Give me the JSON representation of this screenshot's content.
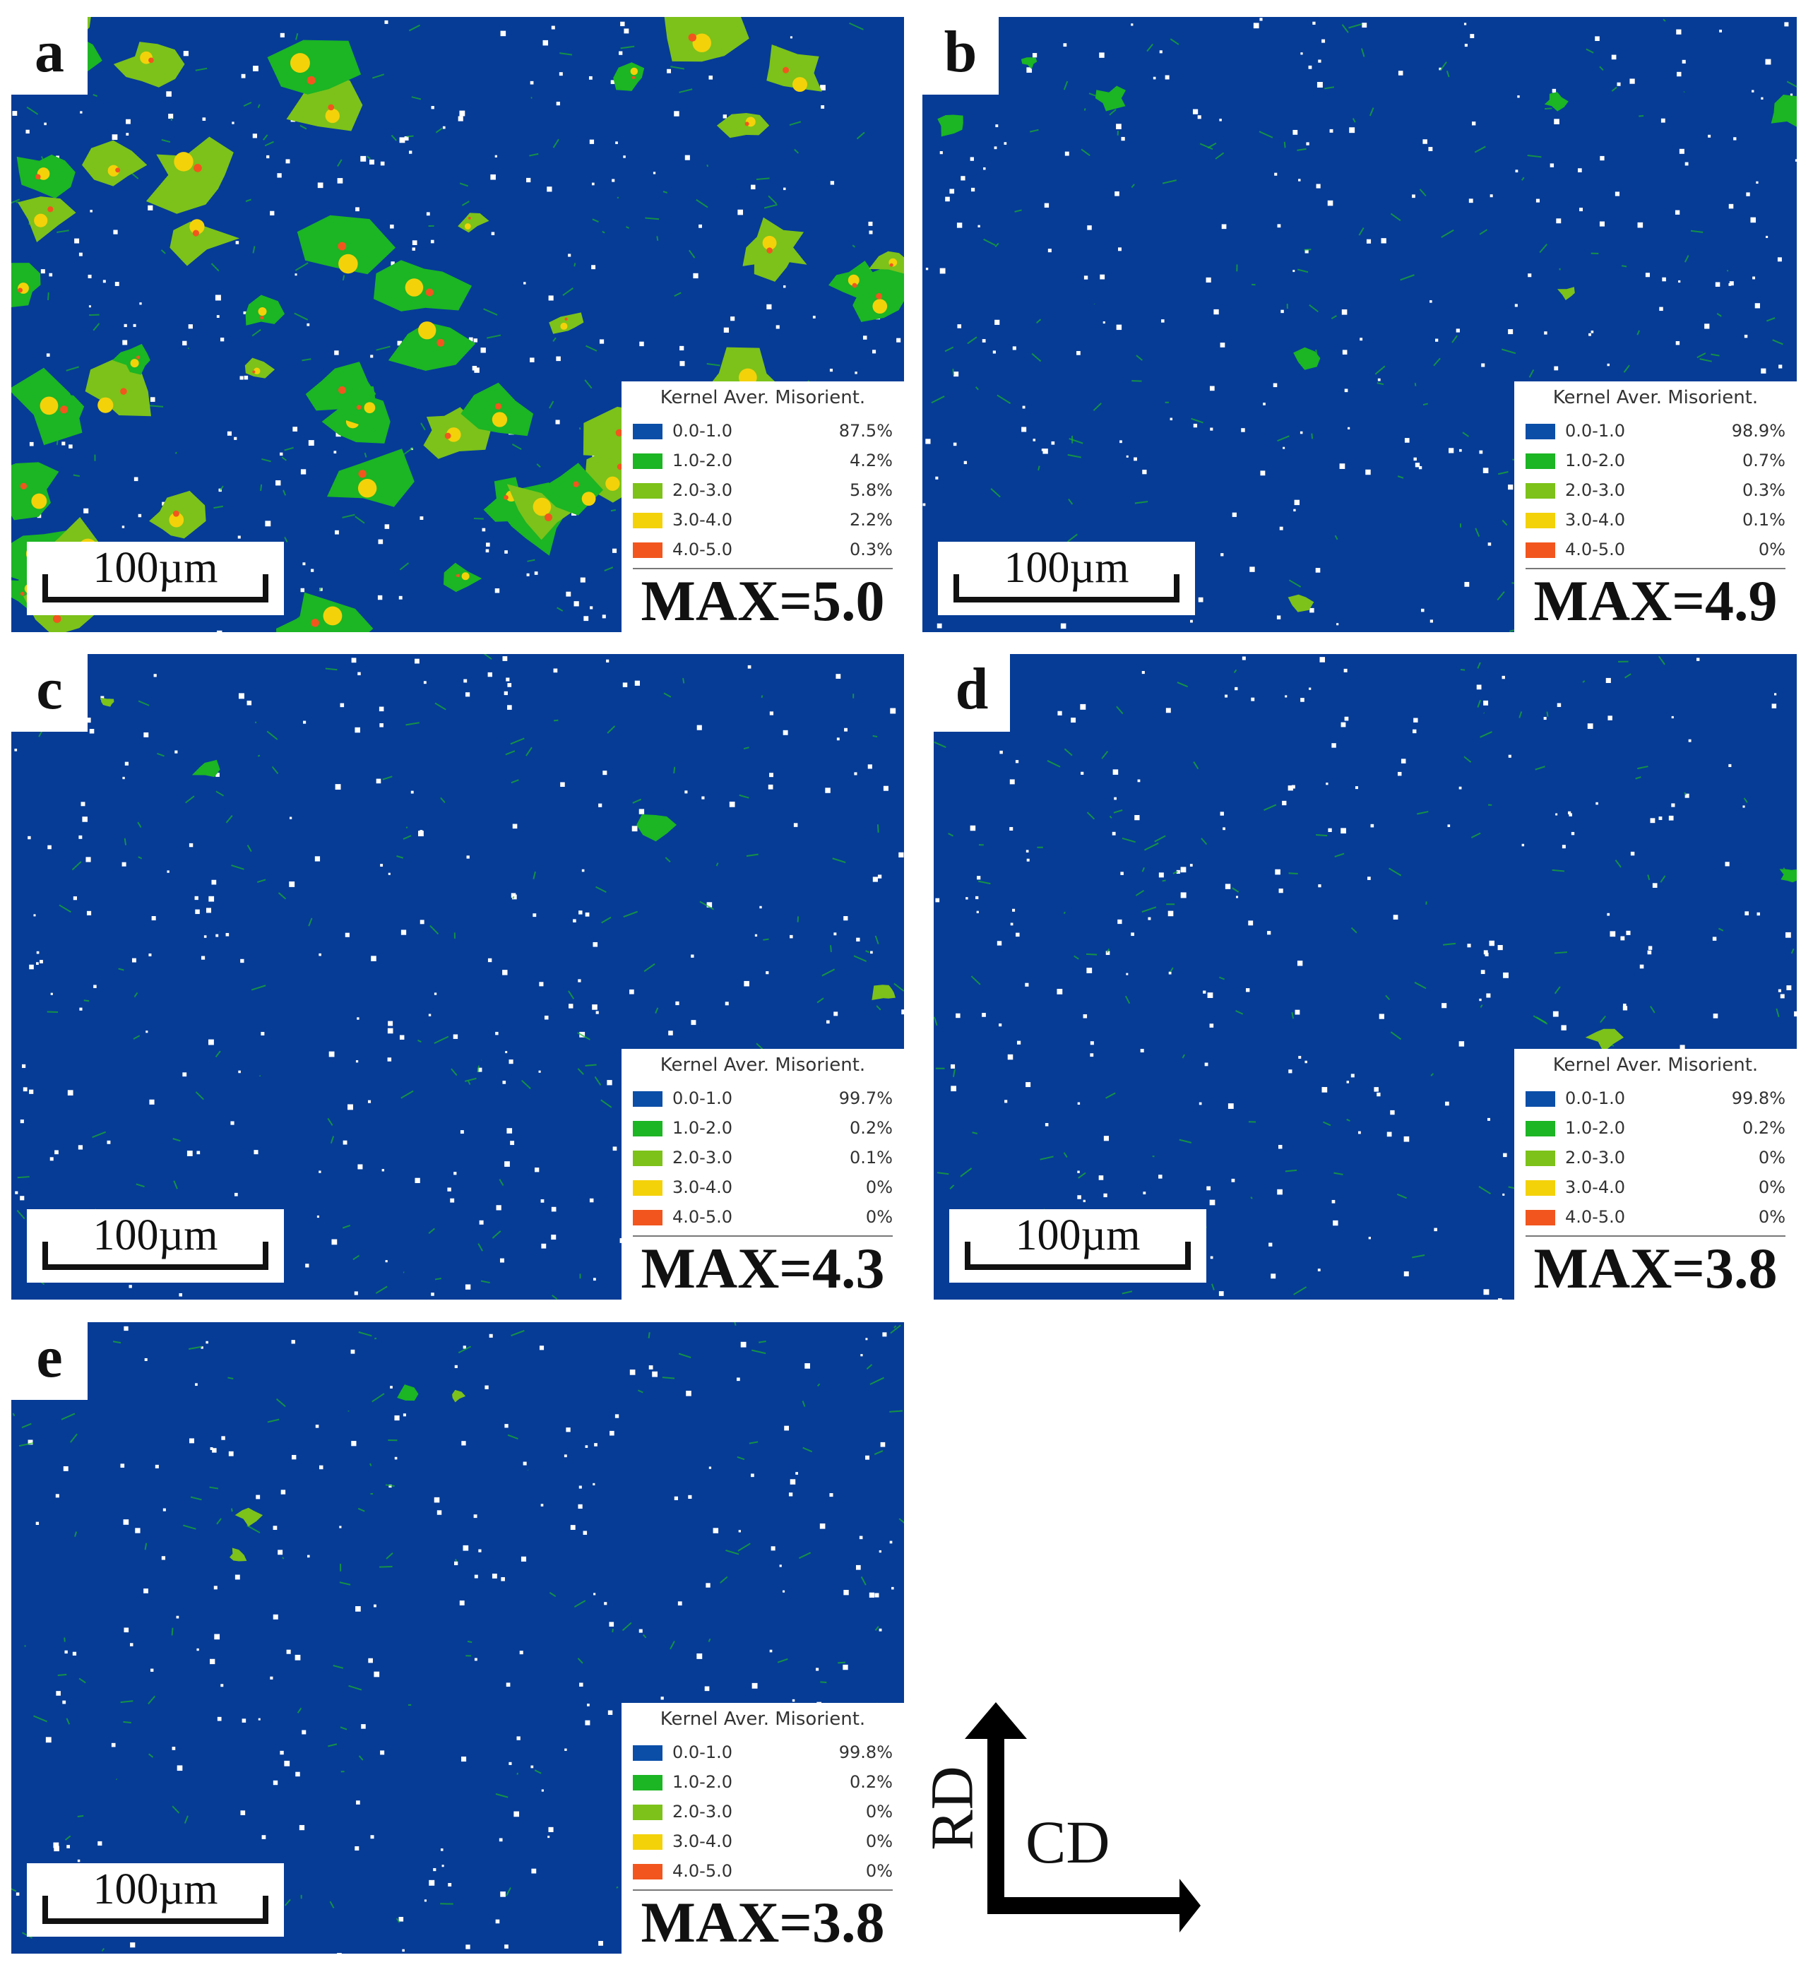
{
  "colors": {
    "matrix": "#063C96",
    "bin_0_1": "#0A4EA8",
    "bin_1_2": "#1CB524",
    "bin_2_3": "#7CC21A",
    "bin_3_4": "#F3D20A",
    "bin_4_5": "#F2561E"
  },
  "legend_title": "Kernel Aver. Misorient.",
  "scale_bar": "100µm",
  "panels": [
    {
      "label": "a",
      "max": "MAX=5.0",
      "rows": [
        {
          "range": "0.0-1.0",
          "pct": "87.5%"
        },
        {
          "range": "1.0-2.0",
          "pct": "4.2%"
        },
        {
          "range": "2.0-3.0",
          "pct": "5.8%"
        },
        {
          "range": "3.0-4.0",
          "pct": "2.2%"
        },
        {
          "range": "4.0-5.0",
          "pct": "0.3%"
        }
      ]
    },
    {
      "label": "b",
      "max": "MAX=4.9",
      "rows": [
        {
          "range": "0.0-1.0",
          "pct": "98.9%"
        },
        {
          "range": "1.0-2.0",
          "pct": "0.7%"
        },
        {
          "range": "2.0-3.0",
          "pct": "0.3%"
        },
        {
          "range": "3.0-4.0",
          "pct": "0.1%"
        },
        {
          "range": "4.0-5.0",
          "pct": "0%"
        }
      ]
    },
    {
      "label": "c",
      "max": "MAX=4.3",
      "rows": [
        {
          "range": "0.0-1.0",
          "pct": "99.7%"
        },
        {
          "range": "1.0-2.0",
          "pct": "0.2%"
        },
        {
          "range": "2.0-3.0",
          "pct": "0.1%"
        },
        {
          "range": "3.0-4.0",
          "pct": "0%"
        },
        {
          "range": "4.0-5.0",
          "pct": "0%"
        }
      ]
    },
    {
      "label": "d",
      "max": "MAX=3.8",
      "rows": [
        {
          "range": "0.0-1.0",
          "pct": "99.8%"
        },
        {
          "range": "1.0-2.0",
          "pct": "0.2%"
        },
        {
          "range": "2.0-3.0",
          "pct": "0%"
        },
        {
          "range": "3.0-4.0",
          "pct": "0%"
        },
        {
          "range": "4.0-5.0",
          "pct": "0%"
        }
      ]
    },
    {
      "label": "e",
      "max": "MAX=3.8",
      "rows": [
        {
          "range": "0.0-1.0",
          "pct": "99.8%"
        },
        {
          "range": "1.0-2.0",
          "pct": "0.2%"
        },
        {
          "range": "2.0-3.0",
          "pct": "0%"
        },
        {
          "range": "3.0-4.0",
          "pct": "0%"
        },
        {
          "range": "4.0-5.0",
          "pct": "0%"
        }
      ]
    }
  ],
  "axes": {
    "vertical": "RD",
    "horizontal": "CD"
  }
}
